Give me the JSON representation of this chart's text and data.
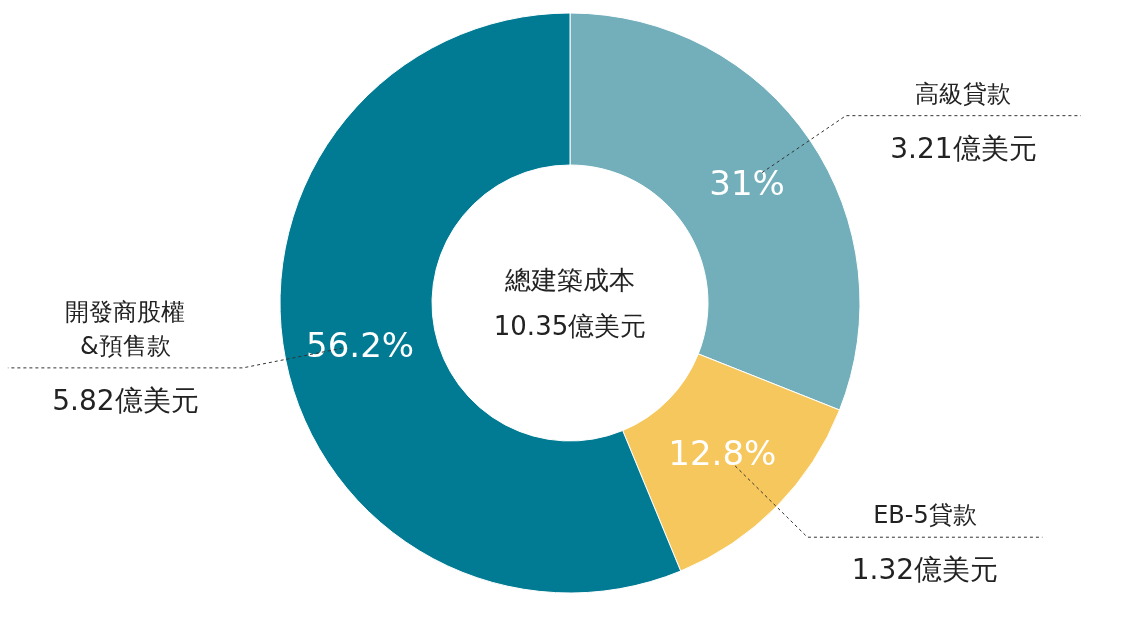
{
  "chart_data": {
    "type": "donut",
    "title": "總建築成本",
    "subtitle": "10.35億美元",
    "categories": [
      "高級貸款",
      "EB-5貸款",
      "開發商股權\n&預售款"
    ],
    "values": [
      3.21,
      1.32,
      5.82
    ],
    "value_labels": [
      "3.21億美元",
      "1.32億美元",
      "5.82億美元"
    ],
    "colors": [
      "#72afbb",
      "#f6c75c",
      "#007b93"
    ],
    "annotations": [
      "31%",
      "12.8%",
      "56.2%"
    ]
  }
}
